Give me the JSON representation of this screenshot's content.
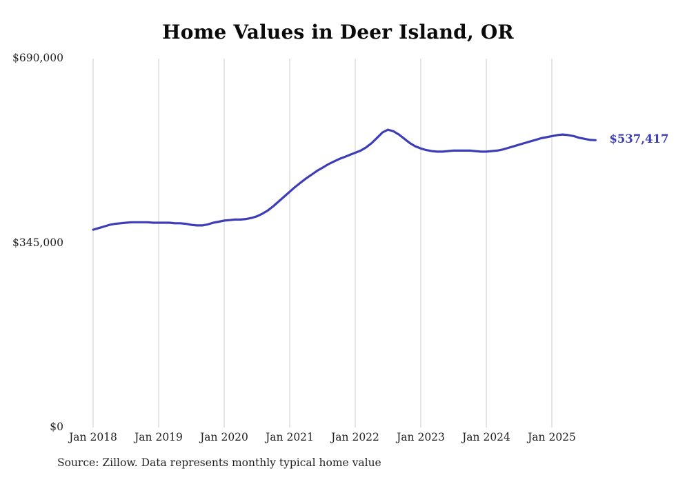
{
  "page": {
    "background": "#ffffff"
  },
  "chart_data": {
    "type": "line",
    "title": "Home Values in Deer Island, OR",
    "source": "Source: Zillow. Data represents monthly typical home value",
    "end_label": "$537,417",
    "end_value": 537417,
    "line_color": "#3d3db8",
    "grid_color": "#cccccc",
    "grid": "vertical-only",
    "legend": "none",
    "ylim": [
      0,
      690000
    ],
    "y_ticks": [
      {
        "label": "$690,000",
        "value": 690000
      },
      {
        "label": "$345,000",
        "value": 345000
      },
      {
        "label": "$0",
        "value": 0
      }
    ],
    "x_ticks": [
      {
        "label": "Jan 2018",
        "month_index": 0
      },
      {
        "label": "Jan 2019",
        "month_index": 12
      },
      {
        "label": "Jan 2020",
        "month_index": 24
      },
      {
        "label": "Jan 2021",
        "month_index": 36
      },
      {
        "label": "Jan 2022",
        "month_index": 48
      },
      {
        "label": "Jan 2023",
        "month_index": 60
      },
      {
        "label": "Jan 2024",
        "month_index": 72
      },
      {
        "label": "Jan 2025",
        "month_index": 84
      }
    ],
    "series": [
      {
        "name": "Typical home value",
        "start": "Jan 2018",
        "frequency": "monthly",
        "values": [
          370000,
          373000,
          376000,
          379000,
          381000,
          382000,
          383000,
          384000,
          384000,
          384000,
          384000,
          383000,
          383000,
          383000,
          383000,
          382000,
          382000,
          381000,
          379000,
          378000,
          378000,
          380000,
          383000,
          385000,
          387000,
          388000,
          389000,
          389000,
          390000,
          392000,
          395000,
          400000,
          406000,
          414000,
          423000,
          432000,
          441000,
          450000,
          458000,
          466000,
          473000,
          480000,
          486000,
          492000,
          497000,
          502000,
          506000,
          510000,
          514000,
          518000,
          524000,
          532000,
          542000,
          552000,
          557000,
          554000,
          548000,
          540000,
          532000,
          526000,
          522000,
          519000,
          517000,
          516000,
          516000,
          517000,
          518000,
          518000,
          518000,
          518000,
          517000,
          516000,
          516000,
          517000,
          518000,
          520000,
          523000,
          526000,
          529000,
          532000,
          535000,
          538000,
          541000,
          543000,
          545000,
          547000,
          548000,
          547000,
          545000,
          542000,
          540000,
          538000,
          537417
        ]
      }
    ]
  }
}
